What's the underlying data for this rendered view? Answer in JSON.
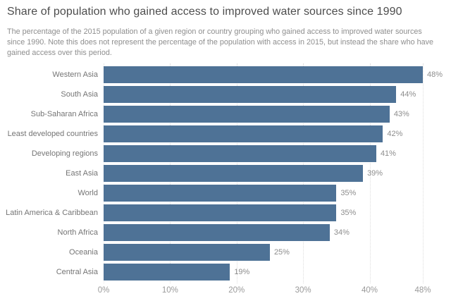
{
  "header": {
    "title": "Share of population who gained access to improved water sources since 1990",
    "subtitle": "The percentage of the 2015 population of a given region or country grouping who gained access to improved water sources since 1990. Note this does not represent the percentage of the population with access in 2015, but instead the share who have gained access over this period."
  },
  "chart_data": {
    "type": "bar",
    "orientation": "horizontal",
    "title": "Share of population who gained access to improved water sources since 1990",
    "categories": [
      "Western Asia",
      "South Asia",
      "Sub-Saharan Africa",
      "Least developed countries",
      "Developing regions",
      "East Asia",
      "World",
      "Latin America & Caribbean",
      "North Africa",
      "Oceania",
      "Central Asia"
    ],
    "values": [
      48,
      44,
      43,
      42,
      41,
      39,
      35,
      35,
      34,
      25,
      19
    ],
    "value_labels": [
      "48%",
      "44%",
      "43%",
      "42%",
      "41%",
      "39%",
      "35%",
      "35%",
      "34%",
      "25%",
      "19%"
    ],
    "xlabel": "",
    "ylabel": "",
    "xlim": [
      0,
      48
    ],
    "x_ticks": [
      {
        "value": 0,
        "label": "0%"
      },
      {
        "value": 10,
        "label": "10%"
      },
      {
        "value": 20,
        "label": "20%"
      },
      {
        "value": 30,
        "label": "30%"
      },
      {
        "value": 40,
        "label": "40%"
      },
      {
        "value": 48,
        "label": "48%"
      }
    ],
    "grid": "vertical dotted lines at x ticks",
    "legend": "none",
    "bar_color": "#4e7296"
  },
  "colors": {
    "background": "#ffffff",
    "bar": "#4e7296",
    "title_text": "#4d4d4d",
    "subtitle_text": "#8e8e8e",
    "category_label": "#757575",
    "value_label": "#8d8d8d",
    "tick_label": "#9a9a9a",
    "gridline": "#dddddd"
  }
}
